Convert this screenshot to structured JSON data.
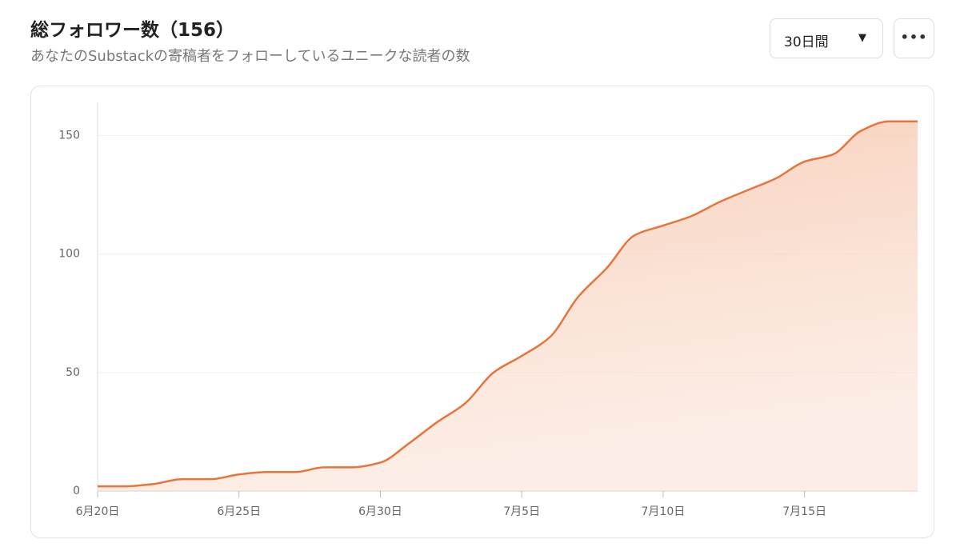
{
  "header": {
    "title": "総フォロワー数（156）",
    "subtitle": "あなたのSubstackの寄稿者をフォローしているユニークな読者の数"
  },
  "controls": {
    "period": "30日間"
  },
  "chart_data": {
    "type": "area",
    "categories": [
      "6月20日",
      null,
      null,
      null,
      null,
      "6月25日",
      null,
      null,
      null,
      null,
      "6月30日",
      null,
      null,
      null,
      null,
      "7月5日",
      null,
      null,
      null,
      null,
      "7月10日",
      null,
      null,
      null,
      null,
      "7月15日",
      null,
      null,
      null,
      null
    ],
    "values": [
      2,
      2,
      3,
      5,
      5,
      7,
      8,
      8,
      10,
      10,
      12,
      20,
      29,
      37,
      50,
      57,
      65,
      82,
      94,
      108,
      112,
      116,
      122,
      127,
      132,
      139,
      142,
      152,
      156,
      156
    ],
    "color": "#e8743b",
    "ylim": [
      0,
      164
    ],
    "yticks": [
      0,
      50,
      100,
      150
    ],
    "grid": true
  }
}
